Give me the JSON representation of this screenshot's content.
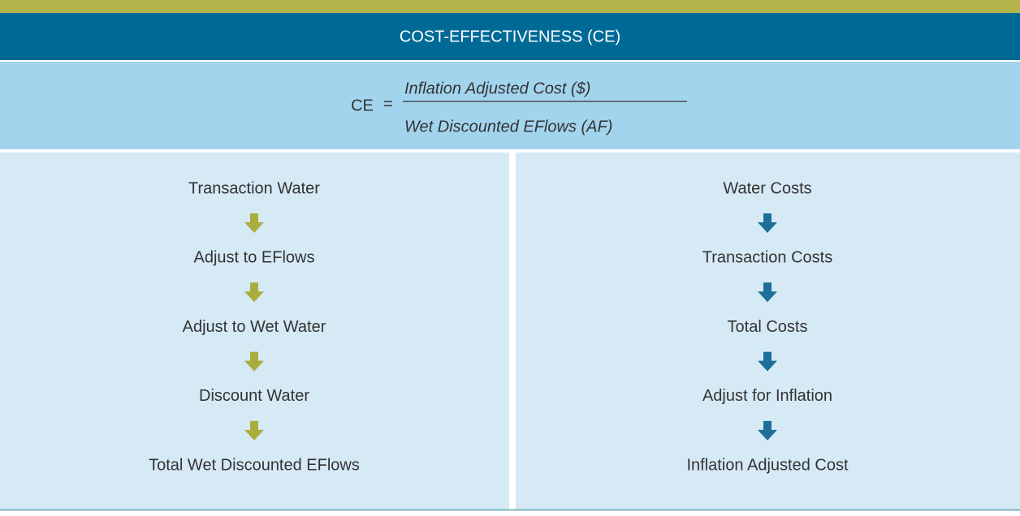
{
  "header": {
    "title": "COST-EFFECTIVENESS (CE)"
  },
  "formula": {
    "lhs": "CE",
    "equals": "=",
    "numerator": "Inflation Adjusted Cost ($)",
    "denominator": "Wet Discounted EFlows (AF)"
  },
  "left_flow": {
    "steps": [
      "Transaction Water",
      "Adjust to EFlows",
      "Adjust to Wet Water",
      "Discount Water",
      "Total Wet Discounted EFlows"
    ]
  },
  "right_flow": {
    "steps": [
      "Water Costs",
      "Transaction Costs",
      "Total Costs",
      "Adjust for Inflation",
      "Inflation Adjusted Cost"
    ]
  }
}
